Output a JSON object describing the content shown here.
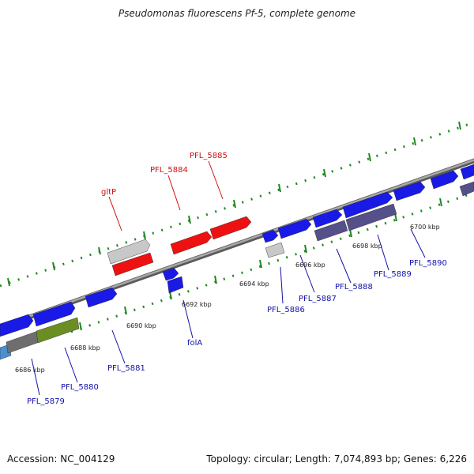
{
  "title": "Pseudomonas fluorescens Pf-5, complete genome",
  "accession": "Accession: NC_004129",
  "summary": "Topology: circular; Length: 7,074,893 bp; Genes: 6,226",
  "colors": {
    "forward_gene": "#1a1ae6",
    "reverse_gene": "#1a1ae6",
    "highlight_gene": "#ee1111",
    "pseudo_gene": "#c8c8c8",
    "dark_gene": "#55508a",
    "green_gene": "#6b8e23",
    "grey_gene": "#6e6e6e",
    "backbone": "#8a8a8a",
    "tick": "#228822",
    "blue_label": "#1111aa",
    "red_label": "#cc1111"
  },
  "tick_labels": [
    "6686 kbp",
    "6688 kbp",
    "6690 kbp",
    "6692 kbp",
    "6694 kbp",
    "6696 kbp",
    "6698 kbp",
    "6700 kbp"
  ],
  "gene_labels": {
    "top": [
      "gltP",
      "PFL_5884",
      "PFL_5885"
    ],
    "bottom": [
      "PFL_5879",
      "PFL_5880",
      "PFL_5881",
      "folA",
      "PFL_5886",
      "PFL_5887",
      "PFL_5888",
      "PFL_5889",
      "PFL_5890"
    ]
  }
}
